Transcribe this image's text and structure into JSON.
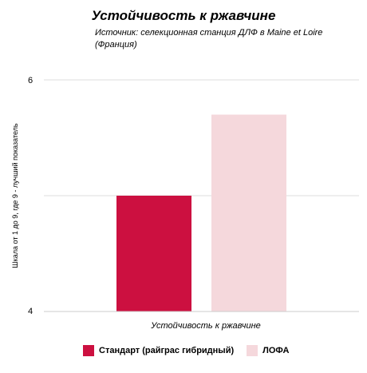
{
  "chart_data": {
    "type": "bar",
    "title": "Устойчивость к ржавчине",
    "subtitle": "Источник: селекционная станция ДЛФ в Maine et Loire (Франция)",
    "xlabel": "Устойчивость к ржавчине",
    "ylabel": "Шкала от 1 до 9, где 9 - лучший показатель",
    "ylim": [
      4,
      6
    ],
    "yticks": [
      "4",
      "6"
    ],
    "grid": true,
    "legend_position": "bottom",
    "series": [
      {
        "name": "Стандарт (райграс гибридный)",
        "color": "#cc1040",
        "values": [
          5.0
        ]
      },
      {
        "name": "ЛОФА",
        "color": "#f5d8dc",
        "values": [
          5.7
        ]
      }
    ]
  }
}
